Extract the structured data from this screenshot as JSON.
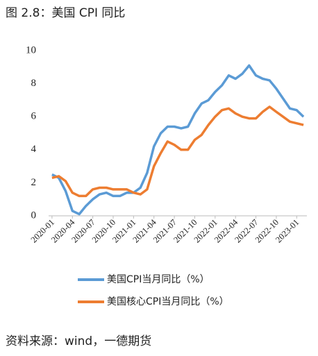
{
  "chart_data": {
    "type": "line",
    "title": "图 2.8：美国 CPI 同比",
    "source": "资料来源：wind，一德期货",
    "categories": [
      "2020-01",
      null,
      null,
      "2020-04",
      null,
      null,
      "2020-07",
      null,
      null,
      "2020-10",
      null,
      null,
      "2021-01",
      null,
      null,
      "2021-04",
      null,
      null,
      "2021-07",
      null,
      null,
      "2021-10",
      null,
      null,
      "2022-01",
      null,
      null,
      "2022-04",
      null,
      null,
      "2022-07",
      null,
      null,
      "2022-10",
      null,
      null,
      "2023-01",
      null
    ],
    "series": [
      {
        "name": "美国CPI当月同比（%）",
        "color": "#5b9bd5",
        "values": [
          2.5,
          2.3,
          1.5,
          0.3,
          0.1,
          0.6,
          1.0,
          1.3,
          1.4,
          1.2,
          1.2,
          1.4,
          1.4,
          1.7,
          2.6,
          4.2,
          5.0,
          5.4,
          5.4,
          5.3,
          5.4,
          6.2,
          6.8,
          7.0,
          7.5,
          7.9,
          8.5,
          8.3,
          8.6,
          9.1,
          8.5,
          8.3,
          8.2,
          7.7,
          7.1,
          6.5,
          6.4,
          6.0
        ]
      },
      {
        "name": "美国核心CPI当月同比（%）",
        "color": "#ed7d31",
        "values": [
          2.3,
          2.4,
          2.1,
          1.4,
          1.2,
          1.2,
          1.6,
          1.7,
          1.7,
          1.6,
          1.6,
          1.6,
          1.4,
          1.3,
          1.6,
          3.0,
          3.8,
          4.5,
          4.3,
          4.0,
          4.0,
          4.6,
          4.9,
          5.5,
          6.0,
          6.4,
          6.5,
          6.2,
          6.0,
          5.9,
          5.9,
          6.3,
          6.6,
          6.3,
          6.0,
          5.7,
          5.6,
          5.5
        ]
      }
    ],
    "ylim": [
      0,
      10
    ],
    "yticks": [
      0,
      2,
      4,
      6,
      8,
      10
    ],
    "grid": false
  }
}
